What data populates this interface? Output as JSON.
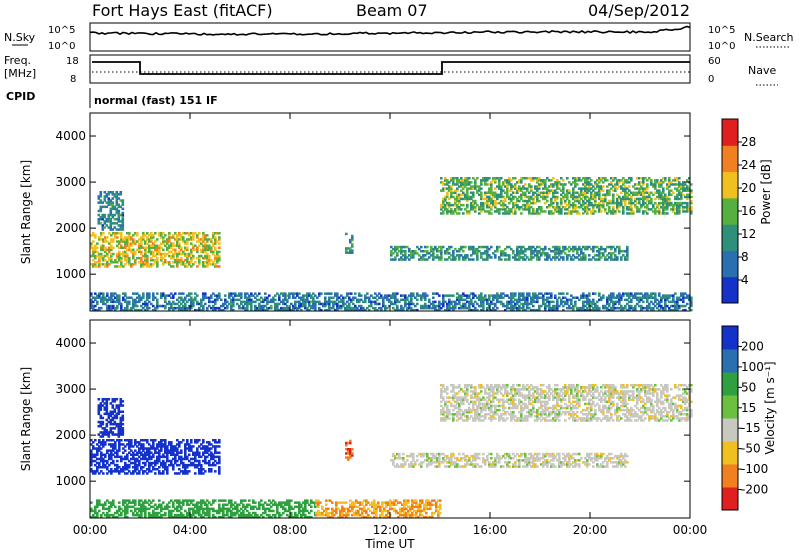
{
  "header": {
    "station": "Fort Hays East (fitACF)",
    "beam": "Beam 07",
    "date": "04/Sep/2012"
  },
  "noise_panel": {
    "left_label": "N.Sky",
    "left_ticks": [
      "10^5",
      "10^0"
    ],
    "right_ticks": [
      "10^5",
      "10^0"
    ],
    "right_label": "N.Search"
  },
  "freq_panel": {
    "left_label_line1": "Freq.",
    "left_label_line2": "[MHz]",
    "left_ticks": [
      "18",
      "8"
    ],
    "right_ticks": [
      "60",
      "0"
    ],
    "right_label": "Nave"
  },
  "cpid": {
    "label": "CPID",
    "mode": "normal (fast) 151 IF"
  },
  "colors": {
    "power_scale": [
      "#1432c8",
      "#2a6fb0",
      "#2e8f7a",
      "#55b040",
      "#f0c020",
      "#f08020",
      "#e02020"
    ],
    "velocity_scale": [
      "#1432c8",
      "#2a6fb0",
      "#2ea040",
      "#6cc040",
      "#c8c8c0",
      "#f0c020",
      "#f08020",
      "#e02020"
    ],
    "ground_scatter": "#b4b4b4"
  },
  "chart_data": [
    {
      "type": "heatmap",
      "title": "",
      "xlabel": "Time UT",
      "ylabel": "Slant Range [km]",
      "xlim": [
        "00:00",
        "24:00"
      ],
      "ylim": [
        200,
        4500
      ],
      "x_ticks": [
        "00:00",
        "04:00",
        "08:00",
        "12:00",
        "16:00",
        "20:00",
        "00:00"
      ],
      "y_ticks": [
        "1000",
        "2000",
        "3000",
        "4000"
      ],
      "colorbar": {
        "label": "Power [dB]",
        "ticks": [
          "4",
          "8",
          "12",
          "16",
          "20",
          "24",
          "28"
        ],
        "range": [
          0,
          30
        ]
      },
      "regions": [
        {
          "t_start": 0.0,
          "t_end": 5.2,
          "range_lo": 1150,
          "range_hi": 1900,
          "value": 18
        },
        {
          "t_start": 0.3,
          "t_end": 1.3,
          "range_lo": 1950,
          "range_hi": 2800,
          "value": 9
        },
        {
          "t_start": 10.2,
          "t_end": 10.5,
          "range_lo": 1450,
          "range_hi": 1900,
          "value": 10
        },
        {
          "t_start": 12.0,
          "t_end": 21.5,
          "range_lo": 1300,
          "range_hi": 1600,
          "value": 10
        },
        {
          "t_start": 14.0,
          "t_end": 24.0,
          "range_lo": 2300,
          "range_hi": 3100,
          "value": 14
        },
        {
          "t_start": 0.0,
          "t_end": 24.0,
          "range_lo": 200,
          "range_hi": 600,
          "value": 8
        }
      ]
    },
    {
      "type": "heatmap",
      "title": "",
      "xlabel": "Time UT",
      "ylabel": "Slant Range [km]",
      "xlim": [
        "00:00",
        "24:00"
      ],
      "ylim": [
        200,
        4500
      ],
      "x_ticks": [
        "00:00",
        "04:00",
        "08:00",
        "12:00",
        "16:00",
        "20:00",
        "00:00"
      ],
      "y_ticks": [
        "1000",
        "2000",
        "3000",
        "4000"
      ],
      "colorbar": {
        "label": "Velocity [m s⁻¹]",
        "ticks": [
          "200",
          "100",
          "50",
          "15",
          "-15",
          "-50",
          "-100",
          "-200"
        ],
        "range": [
          -250,
          250
        ]
      },
      "regions": [
        {
          "t_start": 0.0,
          "t_end": 5.2,
          "range_lo": 1150,
          "range_hi": 1900,
          "value": 200
        },
        {
          "t_start": 0.3,
          "t_end": 1.3,
          "range_lo": 1950,
          "range_hi": 2800,
          "value": 200
        },
        {
          "t_start": 10.2,
          "t_end": 10.5,
          "range_lo": 1450,
          "range_hi": 1900,
          "value": -100
        },
        {
          "t_start": 12.0,
          "t_end": 21.5,
          "range_lo": 1300,
          "range_hi": 1600,
          "value": 0
        },
        {
          "t_start": 14.0,
          "t_end": 24.0,
          "range_lo": 2300,
          "range_hi": 3100,
          "value": 0
        },
        {
          "t_start": 0.0,
          "t_end": 9.0,
          "range_lo": 200,
          "range_hi": 600,
          "value": 50
        },
        {
          "t_start": 9.0,
          "t_end": 14.0,
          "range_lo": 200,
          "range_hi": 600,
          "value": -50
        }
      ]
    }
  ]
}
